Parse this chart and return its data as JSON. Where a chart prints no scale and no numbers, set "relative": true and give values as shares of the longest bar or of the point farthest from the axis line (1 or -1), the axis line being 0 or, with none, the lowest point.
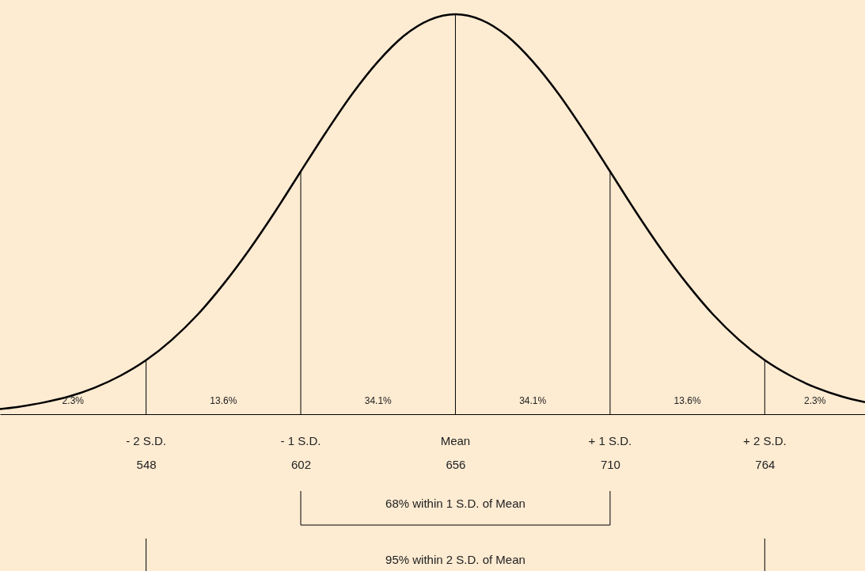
{
  "chart_data": {
    "type": "line",
    "relative": true,
    "x": [
      497,
      503,
      512,
      521,
      530,
      539,
      548,
      557,
      566,
      575,
      584,
      593,
      602,
      611,
      620,
      629,
      638,
      647,
      656,
      665,
      674,
      683,
      692,
      701,
      710,
      719,
      728,
      737,
      746,
      755,
      764,
      773,
      782,
      791,
      799
    ],
    "series": [
      {
        "color": "#000000",
        "values": [
          0.013,
          0.018,
          0.029,
          0.044,
          0.066,
          0.096,
          0.135,
          0.186,
          0.249,
          0.325,
          0.411,
          0.506,
          0.607,
          0.707,
          0.801,
          0.882,
          0.946,
          0.986,
          1.0,
          0.986,
          0.946,
          0.882,
          0.801,
          0.707,
          0.607,
          0.506,
          0.411,
          0.325,
          0.249,
          0.186,
          0.135,
          0.096,
          0.066,
          0.044,
          0.03
        ]
      }
    ],
    "xlim": [
      497,
      799
    ],
    "xticks": [
      548,
      602,
      656,
      710,
      764
    ],
    "ref_lines": [
      {
        "axis": "x",
        "value": 548,
        "label": "- 2 S.D."
      },
      {
        "axis": "x",
        "value": 602,
        "label": "- 1 S.D."
      },
      {
        "axis": "x",
        "value": 656,
        "label": "Mean"
      },
      {
        "axis": "x",
        "value": 710,
        "label": "+ 1 S.D."
      },
      {
        "axis": "x",
        "value": 764,
        "label": "+ 2 S.D."
      }
    ],
    "annotations": [
      "2.3%",
      "13.6%",
      "34.1%",
      "34.1%",
      "13.6%",
      "2.3%",
      "68% within 1 S.D. of Mean",
      "95% within 2 S.D. of Mean"
    ],
    "grid": false,
    "marker": "none",
    "line_style": "solid"
  }
}
